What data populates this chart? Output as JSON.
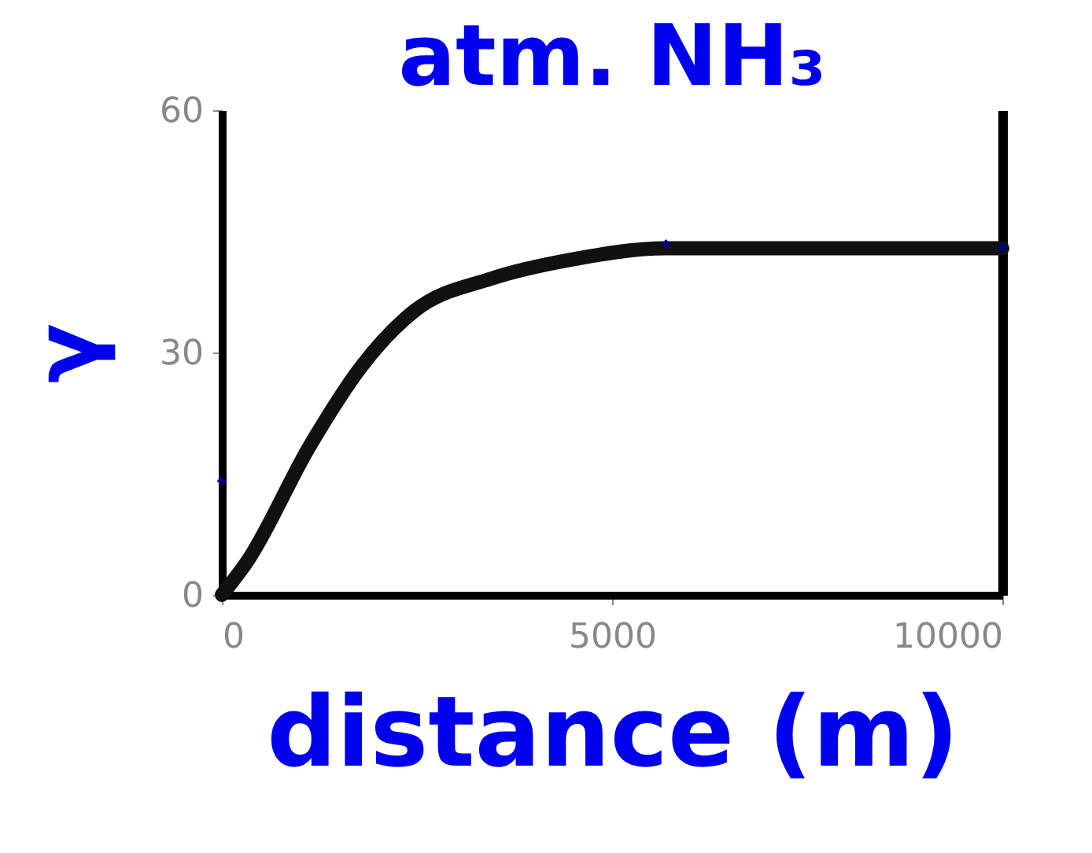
{
  "chart_data": {
    "type": "line",
    "title": "atm. NH₃",
    "xlabel": "distance (m)",
    "ylabel": "γ",
    "xlim": [
      0,
      10000
    ],
    "xticks": [
      0,
      5000,
      10000
    ],
    "ylim": [
      0,
      60
    ],
    "yticks": [
      0,
      30,
      60
    ],
    "grid": false,
    "series": [
      {
        "color": "#111111",
        "marker": "none",
        "line_style": "solid",
        "x": [
          0,
          322,
          1130,
          1790,
          2460,
          3470,
          4480,
          5690,
          10000
        ],
        "values": [
          0,
          4.1,
          18.5,
          28.3,
          35.1,
          39.2,
          41.5,
          42.9,
          42.9
        ]
      },
      {
        "type": "scatter",
        "color": "#000080",
        "marker": "diamond",
        "x": [
          0,
          5690,
          10000
        ],
        "values": [
          14.1,
          43.4,
          43
        ]
      }
    ]
  }
}
